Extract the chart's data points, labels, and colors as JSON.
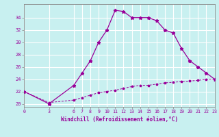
{
  "xlabel": "Windchill (Refroidissement éolien,°C)",
  "background_color": "#c8f0f0",
  "line_color": "#990099",
  "grid_color": "#ffffff",
  "hours": [
    0,
    3,
    6,
    7,
    8,
    9,
    10,
    11,
    12,
    13,
    14,
    15,
    16,
    17,
    18,
    19,
    20,
    21,
    22,
    23
  ],
  "windchill": [
    22.0,
    20.0,
    23.0,
    25.0,
    27.0,
    30.0,
    32.0,
    35.2,
    35.0,
    34.0,
    34.0,
    34.0,
    33.5,
    32.0,
    31.5,
    29.0,
    27.0,
    26.0,
    25.0,
    24.0
  ],
  "temp": [
    22.0,
    20.2,
    20.6,
    21.0,
    21.4,
    21.8,
    22.0,
    22.2,
    22.5,
    22.8,
    23.0,
    23.0,
    23.2,
    23.4,
    23.5,
    23.6,
    23.7,
    23.8,
    24.0,
    24.0
  ],
  "xlim": [
    0,
    23
  ],
  "ylim": [
    19.5,
    36.2
  ],
  "xticks": [
    0,
    3,
    6,
    7,
    8,
    9,
    10,
    11,
    12,
    13,
    14,
    15,
    16,
    17,
    18,
    19,
    20,
    21,
    22,
    23
  ],
  "yticks": [
    20,
    22,
    24,
    26,
    28,
    30,
    32,
    34
  ]
}
